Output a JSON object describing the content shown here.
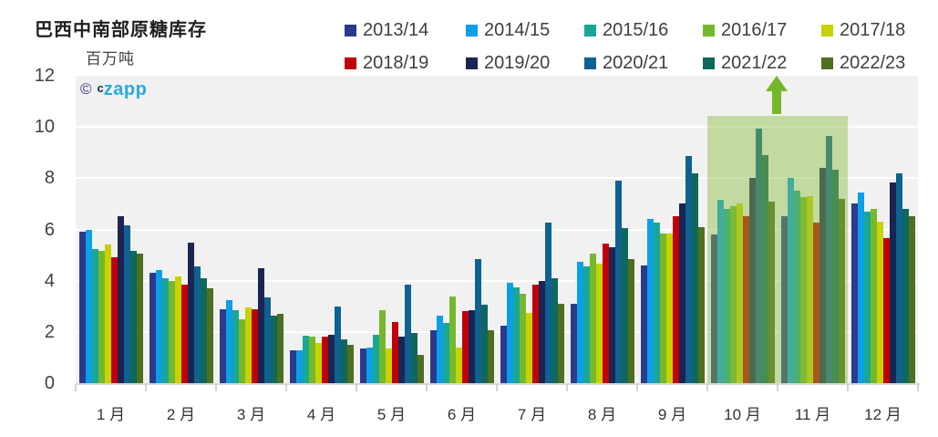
{
  "title": "巴西中南部原糖库存",
  "subtitle": "百万吨",
  "watermark": {
    "symbol": "©",
    "prefix": "c",
    "brand": "zapp"
  },
  "chart_data": {
    "type": "bar",
    "title": "巴西中南部原糖库存",
    "ylabel": "百万吨",
    "ylim": [
      0,
      12
    ],
    "y_ticks": [
      0,
      2,
      4,
      6,
      8,
      10,
      12
    ],
    "grid": true,
    "legend_position": "top-right, two rows",
    "categories": [
      "1 月",
      "2 月",
      "3 月",
      "4 月",
      "5 月",
      "6 月",
      "7 月",
      "8 月",
      "9 月",
      "10 月",
      "11 月",
      "12 月"
    ],
    "series": [
      {
        "name": "2013/14",
        "color": "#2c3a8c",
        "values": [
          5.9,
          4.3,
          2.9,
          1.3,
          1.35,
          2.05,
          2.25,
          3.1,
          4.6,
          5.8,
          6.5,
          7.0
        ]
      },
      {
        "name": "2014/15",
        "color": "#0a9fe8",
        "values": [
          6.0,
          4.4,
          3.25,
          1.3,
          1.4,
          2.65,
          3.9,
          4.75,
          6.4,
          7.15,
          8.0,
          7.45
        ]
      },
      {
        "name": "2015/16",
        "color": "#19a795",
        "values": [
          5.25,
          4.1,
          2.85,
          1.85,
          1.9,
          2.35,
          3.75,
          4.55,
          6.25,
          6.8,
          7.5,
          6.7
        ]
      },
      {
        "name": "2016/17",
        "color": "#76b82b",
        "values": [
          5.15,
          4.0,
          2.5,
          1.8,
          2.85,
          3.4,
          3.5,
          5.05,
          5.85,
          6.9,
          7.25,
          6.8
        ]
      },
      {
        "name": "2017/18",
        "color": "#c6d300",
        "values": [
          5.4,
          4.15,
          2.95,
          1.55,
          1.35,
          1.4,
          2.75,
          4.65,
          5.85,
          7.0,
          7.3,
          6.3
        ]
      },
      {
        "name": "2018/19",
        "color": "#c00007",
        "values": [
          4.9,
          3.85,
          2.9,
          1.8,
          2.4,
          2.8,
          3.85,
          5.45,
          6.5,
          6.5,
          6.25,
          5.65
        ]
      },
      {
        "name": "2019/20",
        "color": "#1b2553",
        "values": [
          6.5,
          5.5,
          4.5,
          1.9,
          1.8,
          2.85,
          4.0,
          5.3,
          7.0,
          8.0,
          8.4,
          7.85
        ]
      },
      {
        "name": "2020/21",
        "color": "#0e6191",
        "values": [
          6.15,
          4.55,
          3.35,
          3.0,
          3.85,
          4.85,
          6.25,
          7.9,
          8.85,
          9.95,
          9.65,
          8.2
        ]
      },
      {
        "name": "2021/22",
        "color": "#0f685c",
        "values": [
          5.15,
          4.1,
          2.65,
          1.7,
          1.95,
          3.05,
          4.1,
          6.05,
          8.2,
          8.9,
          8.35,
          6.8
        ]
      },
      {
        "name": "2022/23",
        "color": "#4e6e20",
        "values": [
          5.05,
          3.7,
          2.7,
          1.5,
          1.1,
          2.05,
          3.1,
          4.85,
          6.1,
          7.1,
          7.2,
          6.5
        ]
      }
    ],
    "annotations": {
      "highlight_region": {
        "categories": [
          "10 月",
          "11 月"
        ],
        "fill": "rgba(139,188,66,0.45)",
        "arrow": "up",
        "arrow_color": "#76b72a"
      }
    }
  }
}
